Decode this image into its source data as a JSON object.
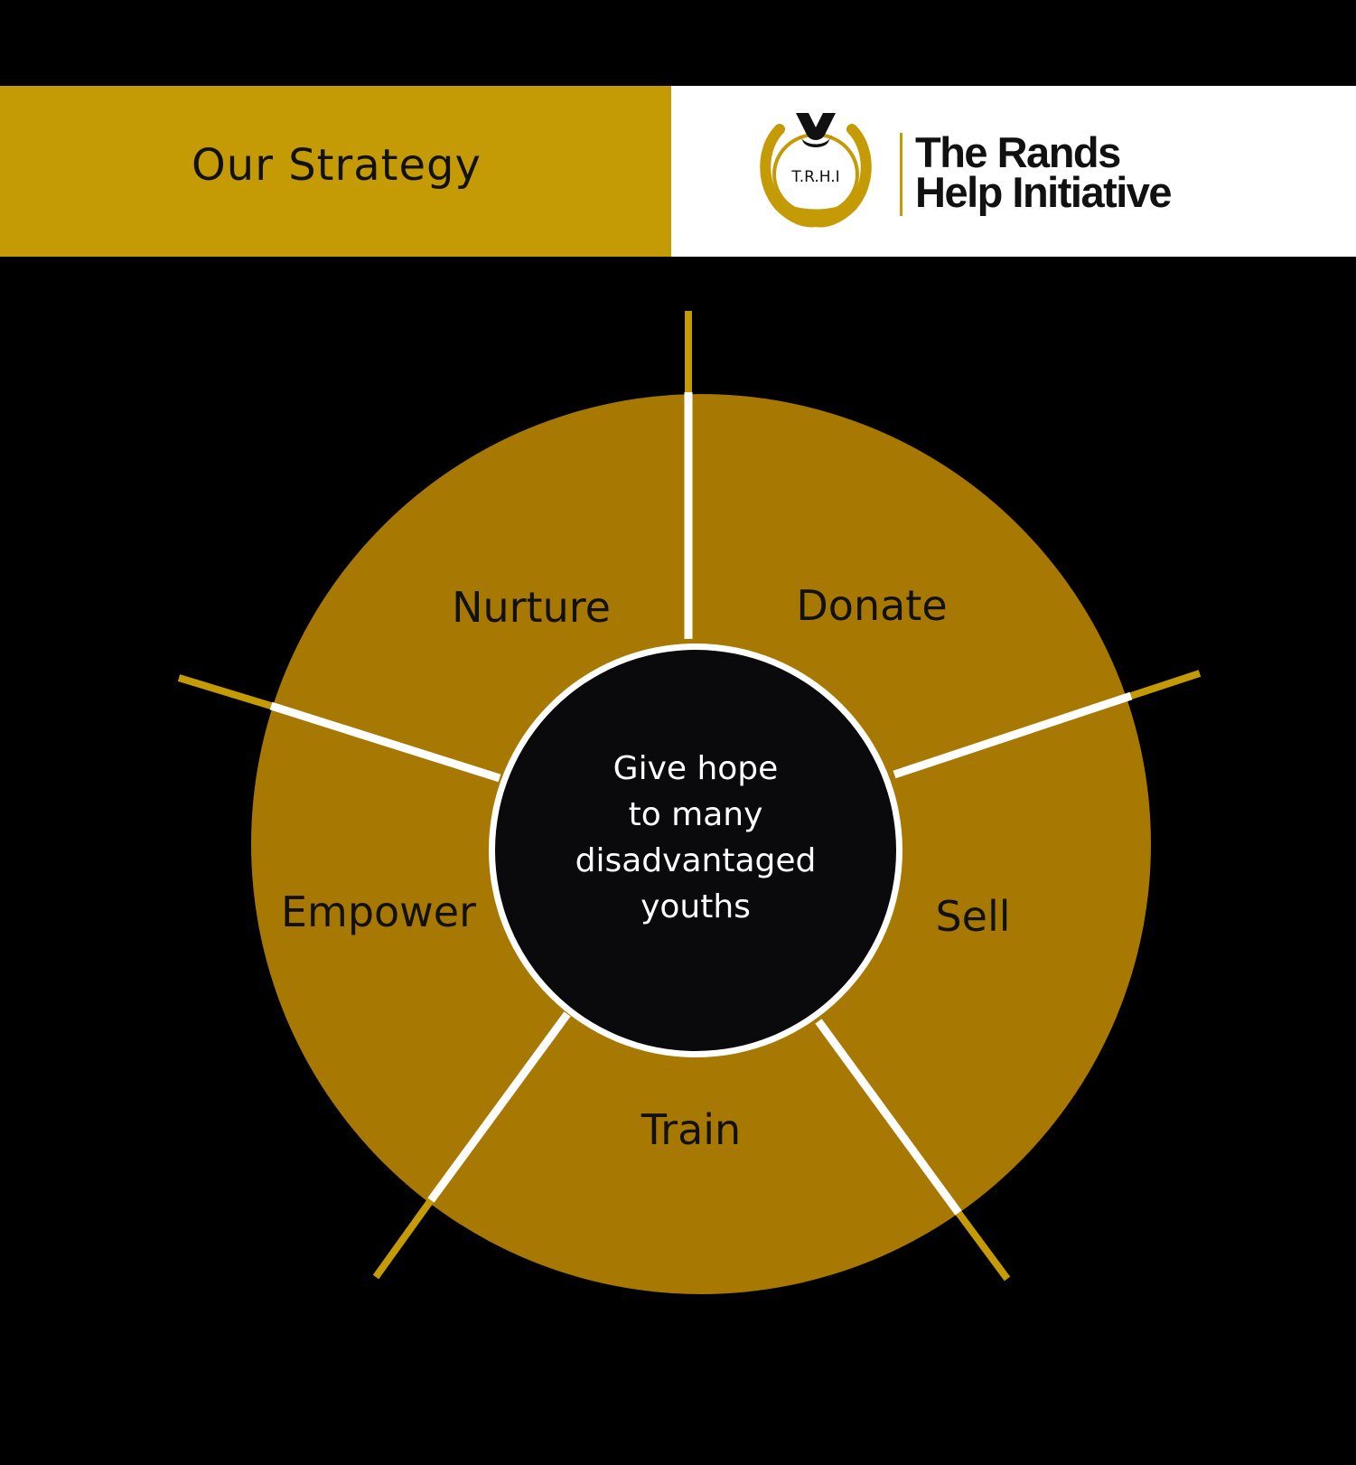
{
  "header": {
    "title": "Our Strategy",
    "logo": {
      "badge_text": "T.R.H.I",
      "name_line1": "The Rands",
      "name_line2": "Help Initiative"
    }
  },
  "diagram": {
    "segments": [
      {
        "label": "Nurture"
      },
      {
        "label": "Donate"
      },
      {
        "label": "Sell"
      },
      {
        "label": "Train"
      },
      {
        "label": "Empower"
      }
    ],
    "center": {
      "lines": [
        "Give hope",
        "to many",
        "disadvantaged",
        "youths"
      ]
    }
  },
  "colors": {
    "background": "#000000",
    "gold": "#c49a05",
    "ring": "#a87902",
    "white": "#ffffff",
    "text_dark": "#111111",
    "center_fill": "#0a0a0c"
  }
}
